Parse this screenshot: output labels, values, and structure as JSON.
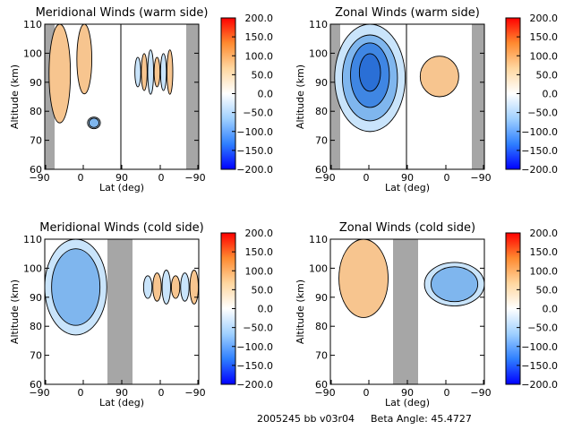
{
  "footer": {
    "run_id": "2005245 bb v03r04",
    "beta_label": "Beta Angle: 45.4727"
  },
  "colors": {
    "plot_bg": "#ffffff",
    "mask_gray": "#a6a6a6",
    "orange": "#f7c58f",
    "light_blue": "#c9e4fb",
    "blue": "#7fb6ee",
    "deep_blue": "#3f86e3",
    "colorbar_stops": [
      "#0000ff",
      "#2f7fff",
      "#9fd0ff",
      "#ffffff",
      "#ffd7a0",
      "#ff8a30",
      "#ff0000"
    ]
  },
  "chart_data": [
    {
      "type": "heatmap",
      "title": "Meridional Winds (warm side)",
      "xlabel": "Lat (deg)",
      "ylabel": "Altitude (km)",
      "x_tick_labels": [
        "−90",
        "0",
        "90",
        "0",
        "−90"
      ],
      "ylim": [
        60,
        110
      ],
      "y_ticks": [
        60,
        70,
        80,
        90,
        100,
        110
      ],
      "colorbar": {
        "vmin": -200,
        "vmax": 200,
        "ticks": [
          "200.0",
          "150.0",
          "100.0",
          "50.0",
          "0.0",
          "−50.0",
          "−100.0",
          "−150.0",
          "−200.0"
        ]
      },
      "masked_lat_ranges": [
        [
          -90,
          -80
        ],
        [
          -80,
          -90
        ]
      ],
      "features": [
        {
          "sign": "positive",
          "lat_range": [
            -80,
            -30
          ],
          "alt_range": [
            76,
            110
          ],
          "level": "weak"
        },
        {
          "sign": "positive",
          "lat_range": [
            -15,
            20
          ],
          "alt_range": [
            86,
            110
          ],
          "level": "weak"
        },
        {
          "sign": "negative",
          "lat_range": [
            10,
            40
          ],
          "alt_range": [
            74,
            78
          ],
          "level": "weak"
        },
        {
          "sign": "mixed",
          "lat_range": [
            120,
            210
          ],
          "alt_range": [
            85,
            102
          ],
          "level": "weak"
        }
      ]
    },
    {
      "type": "heatmap",
      "title": "Zonal Winds (warm side)",
      "xlabel": "Lat (deg)",
      "ylabel": "Altitude (km)",
      "x_tick_labels": [
        "−90",
        "0",
        "90",
        "0",
        "−90"
      ],
      "ylim": [
        60,
        110
      ],
      "y_ticks": [
        60,
        70,
        80,
        90,
        100,
        110
      ],
      "colorbar": {
        "vmin": -200,
        "vmax": 200,
        "ticks": [
          "200.0",
          "150.0",
          "100.0",
          "50.0",
          "0.0",
          "−50.0",
          "−100.0",
          "−150.0",
          "−200.0"
        ]
      },
      "masked_lat_ranges": [
        [
          -90,
          -80
        ],
        [
          -80,
          -90
        ]
      ],
      "features": [
        {
          "sign": "negative",
          "lat_range": [
            -80,
            85
          ],
          "alt_range": [
            73,
            110
          ],
          "level": "strong"
        },
        {
          "sign": "positive",
          "lat_range": [
            120,
            210
          ],
          "alt_range": [
            85,
            99
          ],
          "level": "weak"
        }
      ]
    },
    {
      "type": "heatmap",
      "title": "Meridional Winds (cold side)",
      "xlabel": "Lat (deg)",
      "ylabel": "Altitude (km)",
      "x_tick_labels": [
        "−90",
        "0",
        "90",
        "0",
        "−90"
      ],
      "ylim": [
        60,
        110
      ],
      "y_ticks": [
        60,
        70,
        80,
        90,
        100,
        110
      ],
      "colorbar": {
        "vmin": -200,
        "vmax": 200,
        "ticks": [
          "200.0",
          "150.0",
          "100.0",
          "50.0",
          "0.0",
          "−50.0",
          "−100.0",
          "−150.0",
          "−200.0"
        ]
      },
      "masked_lat_ranges": [
        [
          55,
          125
        ]
      ],
      "features": [
        {
          "sign": "negative",
          "lat_range": [
            -90,
            55
          ],
          "alt_range": [
            77,
            110
          ],
          "level": "moderate"
        },
        {
          "sign": "mixed",
          "lat_range": [
            140,
            270
          ],
          "alt_range": [
            87,
            100
          ],
          "level": "weak"
        }
      ]
    },
    {
      "type": "heatmap",
      "title": "Zonal Winds (cold side)",
      "xlabel": "Lat (deg)",
      "ylabel": "Altitude (km)",
      "x_tick_labels": [
        "−90",
        "0",
        "90",
        "0",
        "−90"
      ],
      "ylim": [
        60,
        110
      ],
      "y_ticks": [
        60,
        70,
        80,
        90,
        100,
        110
      ],
      "colorbar": {
        "vmin": -200,
        "vmax": 200,
        "ticks": [
          "200.0",
          "150.0",
          "100.0",
          "50.0",
          "0.0",
          "−50.0",
          "−100.0",
          "−150.0",
          "−200.0"
        ]
      },
      "masked_lat_ranges": [
        [
          55,
          125
        ]
      ],
      "features": [
        {
          "sign": "positive",
          "lat_range": [
            -70,
            45
          ],
          "alt_range": [
            83,
            110
          ],
          "level": "weak"
        },
        {
          "sign": "negative",
          "lat_range": [
            130,
            270
          ],
          "alt_range": [
            87,
            102
          ],
          "level": "weak"
        }
      ]
    }
  ]
}
